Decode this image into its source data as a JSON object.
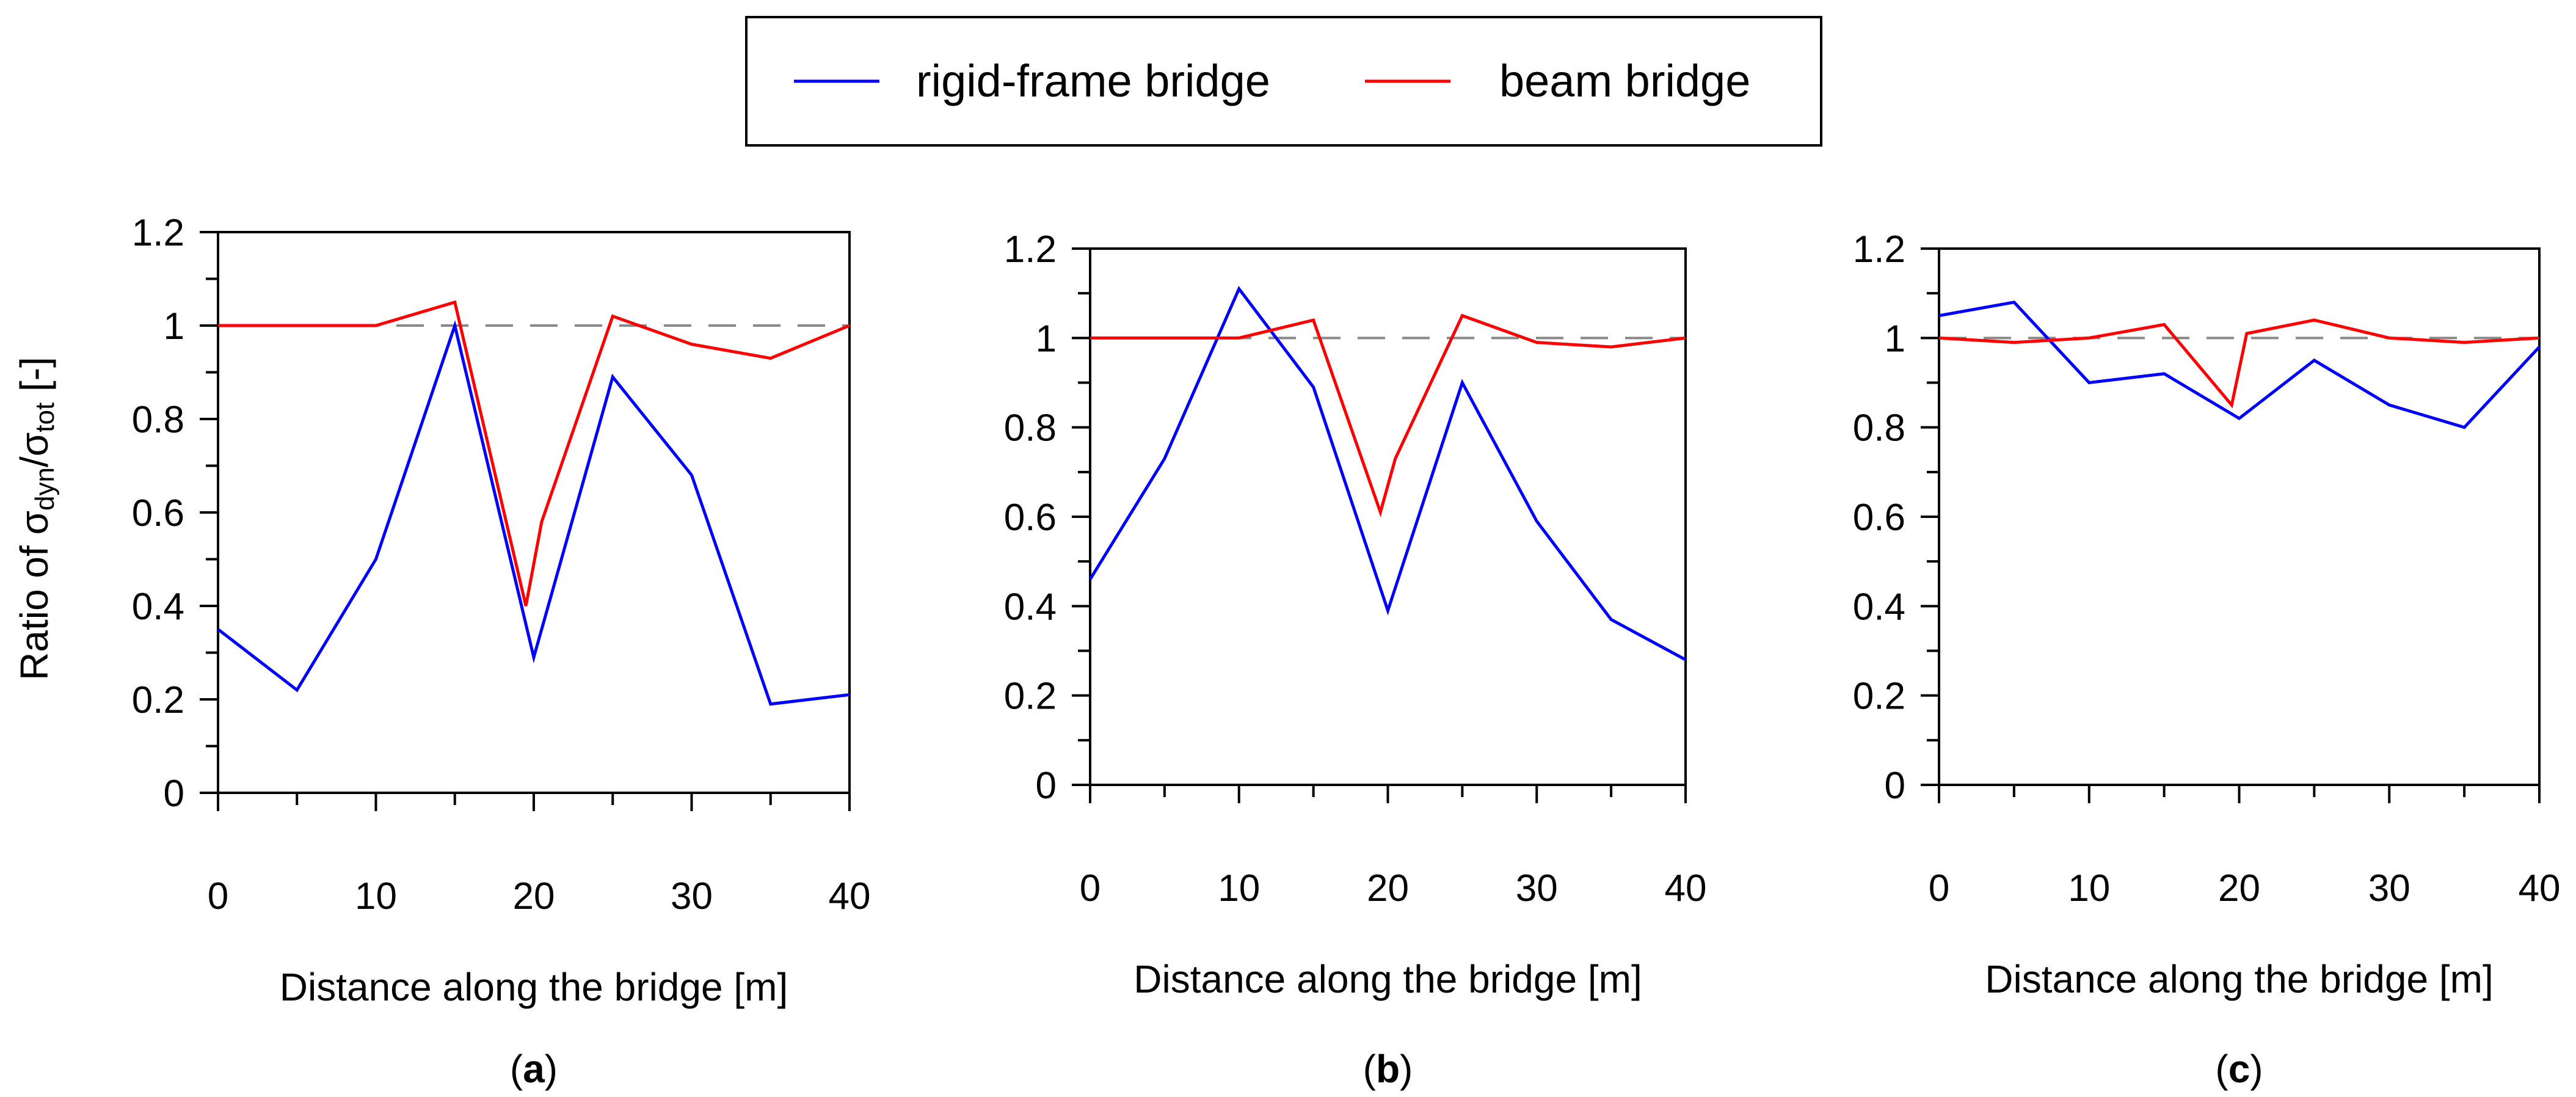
{
  "legend": {
    "placement": "top-center",
    "entries": [
      {
        "label": "rigid-frame bridge",
        "color": "#0000ff"
      },
      {
        "label": "beam bridge",
        "color": "#ff0000"
      }
    ]
  },
  "colors": {
    "rigid": "#0000ff",
    "beam": "#ff0000",
    "reference": "#888888",
    "axis": "#000000"
  },
  "chart_data": [
    {
      "type": "line",
      "panel_label": "a",
      "xlabel": "Distance along the bridge [m]",
      "ylabel": "Ratio of σdyn/σtot [-]",
      "ylabel_parts": {
        "prefix": "Ratio of σ",
        "sub1": "dyn",
        "slash": "/σ",
        "sub2": "tot",
        "suffix": " [-]"
      },
      "xlim": [
        0,
        40
      ],
      "ylim": [
        0,
        1.2
      ],
      "xticks": [
        0,
        10,
        20,
        30,
        40
      ],
      "xtick_labels": [
        "0",
        "10",
        "20",
        "30",
        "40"
      ],
      "yticks": [
        0,
        0.2,
        0.4,
        0.6,
        0.8,
        1,
        1.2
      ],
      "ytick_labels": [
        "0",
        "0.2",
        "0.4",
        "0.6",
        "0.8",
        "1",
        "1.2"
      ],
      "reference_line": 1,
      "series": [
        {
          "name": "rigid-frame bridge",
          "x": [
            0,
            5,
            10,
            15,
            20,
            25,
            30,
            35,
            40
          ],
          "y": [
            0.35,
            0.22,
            0.5,
            1.0,
            0.29,
            0.89,
            0.68,
            0.19,
            0.21
          ]
        },
        {
          "name": "beam bridge",
          "x": [
            0,
            5,
            10,
            15,
            19.5,
            20.5,
            25,
            30,
            35,
            40
          ],
          "y": [
            1.0,
            1.0,
            1.0,
            1.05,
            0.4,
            0.58,
            1.02,
            0.96,
            0.93,
            1.0
          ]
        }
      ]
    },
    {
      "type": "line",
      "panel_label": "b",
      "xlabel": "Distance along the bridge [m]",
      "ylabel": "",
      "xlim": [
        0,
        40
      ],
      "ylim": [
        0,
        1.2
      ],
      "xticks": [
        0,
        10,
        20,
        30,
        40
      ],
      "xtick_labels": [
        "0",
        "10",
        "20",
        "30",
        "40"
      ],
      "yticks": [
        0,
        0.2,
        0.4,
        0.6,
        0.8,
        1,
        1.2
      ],
      "ytick_labels": [
        "0",
        "0.2",
        "0.4",
        "0.6",
        "0.8",
        "1",
        "1.2"
      ],
      "reference_line": 1,
      "series": [
        {
          "name": "rigid-frame bridge",
          "x": [
            0,
            5,
            10,
            15,
            20,
            25,
            30,
            35,
            40
          ],
          "y": [
            0.46,
            0.73,
            1.11,
            0.89,
            0.39,
            0.9,
            0.59,
            0.37,
            0.28
          ]
        },
        {
          "name": "beam bridge",
          "x": [
            0,
            5,
            10,
            15,
            19.5,
            20.5,
            25,
            30,
            35,
            40
          ],
          "y": [
            1.0,
            1.0,
            1.0,
            1.04,
            0.61,
            0.73,
            1.05,
            0.99,
            0.98,
            1.0
          ]
        }
      ]
    },
    {
      "type": "line",
      "panel_label": "c",
      "xlabel": "Distance along the bridge [m]",
      "ylabel": "",
      "xlim": [
        0,
        40
      ],
      "ylim": [
        0,
        1.2
      ],
      "xticks": [
        0,
        10,
        20,
        30,
        40
      ],
      "xtick_labels": [
        "0",
        "10",
        "20",
        "30",
        "40"
      ],
      "yticks": [
        0,
        0.2,
        0.4,
        0.6,
        0.8,
        1,
        1.2
      ],
      "ytick_labels": [
        "0",
        "0.2",
        "0.4",
        "0.6",
        "0.8",
        "1",
        "1.2"
      ],
      "reference_line": 1,
      "series": [
        {
          "name": "rigid-frame bridge",
          "x": [
            0,
            5,
            10,
            15,
            20,
            25,
            30,
            35,
            40
          ],
          "y": [
            1.05,
            1.08,
            0.9,
            0.92,
            0.82,
            0.95,
            0.85,
            0.8,
            0.98
          ]
        },
        {
          "name": "beam bridge",
          "x": [
            0,
            5,
            10,
            15,
            19.5,
            20.5,
            25,
            30,
            35,
            40
          ],
          "y": [
            1.0,
            0.99,
            1.0,
            1.03,
            0.85,
            1.01,
            1.04,
            1.0,
            0.99,
            1.0
          ]
        }
      ]
    }
  ]
}
